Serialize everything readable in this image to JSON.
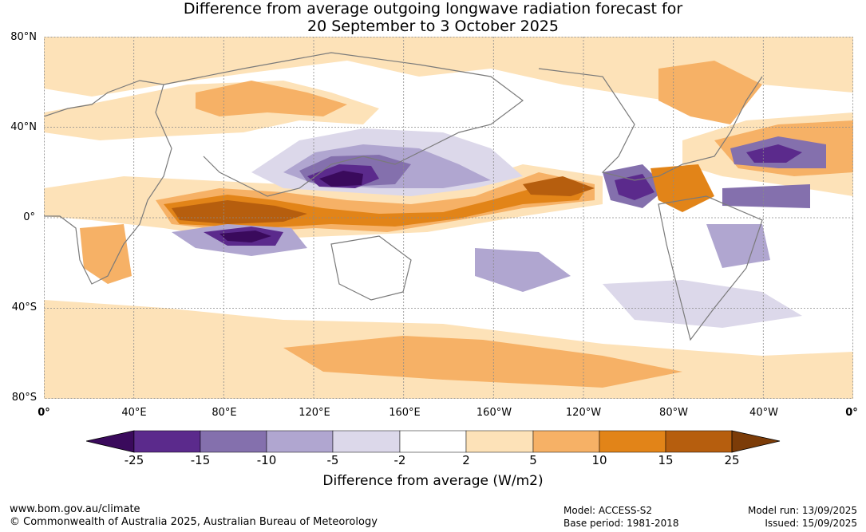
{
  "title_line1": "Difference from average outgoing longwave radiation forecast for",
  "title_line2": "20 September to 3 October 2025",
  "lat_labels": [
    "80°N",
    "40°N",
    "0°",
    "40°S",
    "80°S"
  ],
  "lon_labels": [
    "0°",
    "40°E",
    "80°E",
    "120°E",
    "160°E",
    "160°W",
    "120°W",
    "80°W",
    "40°W",
    "0°"
  ],
  "colorbar": {
    "title": "Difference from average (W/m2)",
    "bounds": [
      "-25",
      "-15",
      "-10",
      "-5",
      "-2",
      "2",
      "5",
      "10",
      "15",
      "25"
    ],
    "colors": [
      "#3a0a5c",
      "#5b2a8c",
      "#8470ad",
      "#b0a6d0",
      "#dcd8ea",
      "#ffffff",
      "#fde2b8",
      "#f6b166",
      "#e28418",
      "#b65e0e",
      "#7c3c08"
    ]
  },
  "footer": {
    "url": "www.bom.gov.au/climate",
    "copyright": "© Commonwealth of Australia 2025, Australian Bureau of Meteorology",
    "model": "Model: ACCESS-S2",
    "base_period": "Base period: 1981-2018",
    "model_run": "Model run: 13/09/2025",
    "issued": "Issued: 15/09/2025"
  }
}
